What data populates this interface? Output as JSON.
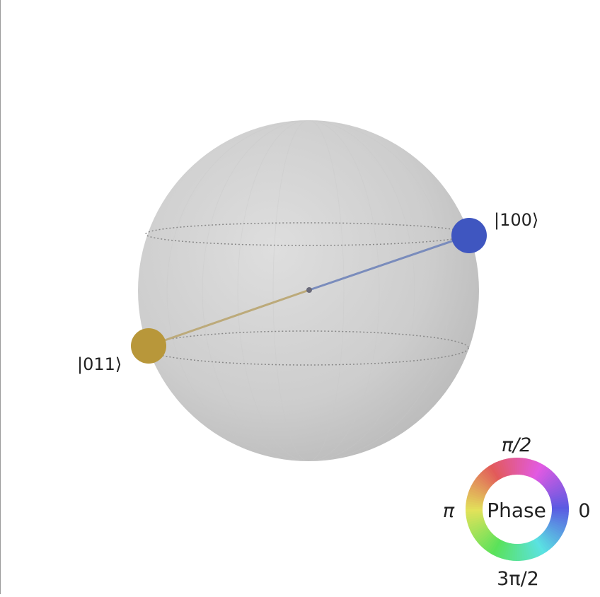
{
  "qsphere": {
    "states": [
      {
        "label": "|100⟩",
        "color": "#3f56c0",
        "line_color": "#7a8cbc"
      },
      {
        "label": "|011⟩",
        "color": "#b8973a",
        "line_color": "#bcaa7a"
      }
    ]
  },
  "phase_wheel": {
    "title": "Phase",
    "labels": {
      "top": "π/2",
      "left": "π",
      "right": "0",
      "bottom": "3π/2"
    }
  },
  "colors": {
    "sphere_light": "#dcdcdc",
    "sphere_dark": "#bcbcbc",
    "latitude": "#888888",
    "center_point": "#6a6a7a"
  }
}
